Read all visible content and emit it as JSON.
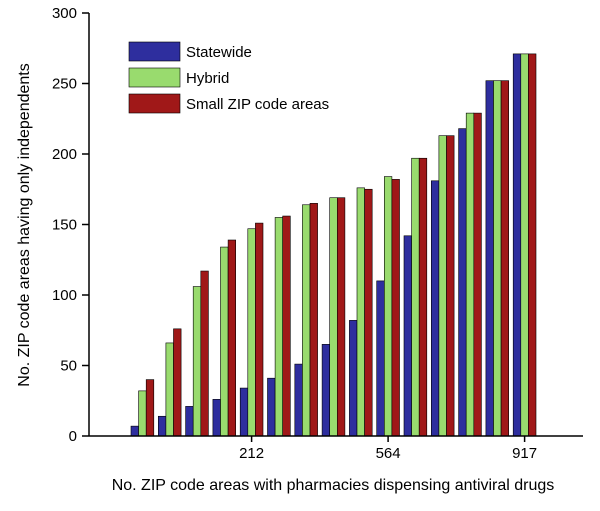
{
  "chart_data": {
    "type": "bar",
    "title": "",
    "xlabel": "No. ZIP code areas with pharmacies dispensing antiviral drugs",
    "ylabel": "No. ZIP code areas having only independents",
    "ylim": [
      0,
      300
    ],
    "yticks": [
      "0",
      "50",
      "100",
      "150",
      "200",
      "250",
      "300"
    ],
    "xtick_labels": [
      {
        "group_index": 4,
        "label": "212"
      },
      {
        "group_index": 9,
        "label": "564"
      },
      {
        "group_index": 14,
        "label": "917"
      }
    ],
    "categories": [
      "1",
      "2",
      "3",
      "4",
      "5",
      "6",
      "7",
      "8",
      "9",
      "10",
      "11",
      "12",
      "13",
      "14",
      "15",
      "16"
    ],
    "legend_position": "top-left",
    "grid": false,
    "series": [
      {
        "name": "Statewide",
        "color": "#2e2e9e",
        "values": [
          7,
          14,
          21,
          26,
          34,
          41,
          51,
          65,
          82,
          110,
          142,
          181,
          218,
          252,
          271,
          0
        ]
      },
      {
        "name": "Hybrid",
        "color": "#99db6e",
        "values": [
          32,
          66,
          106,
          134,
          147,
          155,
          164,
          169,
          176,
          184,
          197,
          213,
          229,
          252,
          271,
          0
        ]
      },
      {
        "name": "Small ZIP code areas",
        "color": "#a01818",
        "values": [
          40,
          76,
          117,
          139,
          151,
          156,
          165,
          169,
          175,
          182,
          197,
          213,
          229,
          252,
          271,
          0
        ]
      }
    ]
  }
}
